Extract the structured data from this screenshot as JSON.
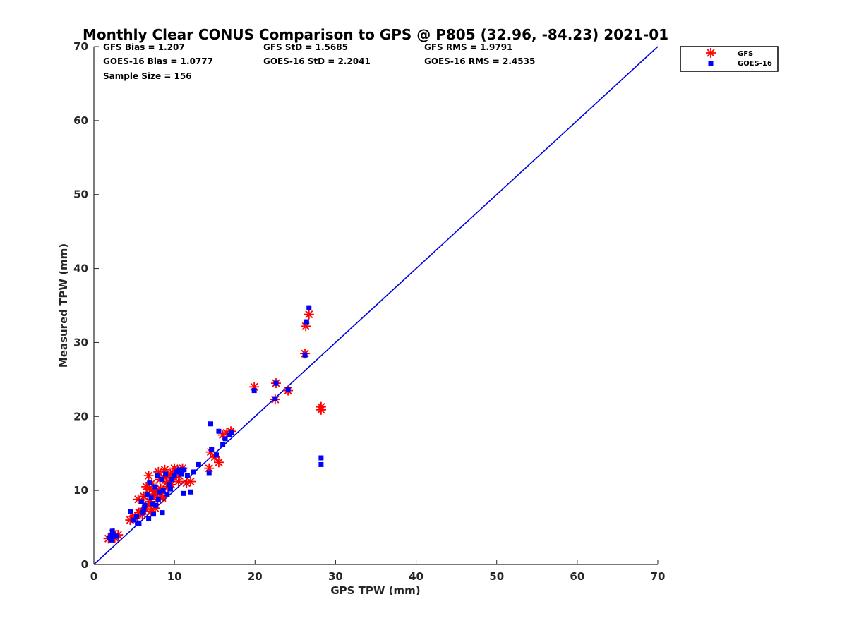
{
  "chart_data": {
    "type": "scatter",
    "title": "Monthly Clear CONUS Comparison to GPS @ P805 (32.96, -84.23) 2021-01",
    "xlabel": "GPS TPW (mm)",
    "ylabel": "Measured TPW (mm)",
    "xlim": [
      0,
      70
    ],
    "ylim": [
      0,
      70
    ],
    "xticks": [
      "0",
      "10",
      "20",
      "30",
      "40",
      "50",
      "60",
      "70"
    ],
    "yticks": [
      "0",
      "10",
      "20",
      "30",
      "40",
      "50",
      "60",
      "70"
    ],
    "grid": false,
    "legend_position": "top-right-outside",
    "stats": [
      [
        "GFS Bias = 1.207",
        "GFS StD = 1.5685",
        "GFS RMS = 1.9791"
      ],
      [
        "GOES-16 Bias = 1.0777",
        "GOES-16 StD = 2.2041",
        "GOES-16 RMS = 2.4535"
      ],
      [
        "Sample Size = 156"
      ]
    ],
    "reference_line": {
      "x": [
        0,
        70
      ],
      "y": [
        0,
        70
      ],
      "color": "#0000dd"
    },
    "series": [
      {
        "name": "GFS",
        "marker": "asterisk",
        "color": "#ff0000",
        "x": [
          1.8,
          2.2,
          2.6,
          3.0,
          2.4,
          4.5,
          4.8,
          5.2,
          5.5,
          5.8,
          6.0,
          6.2,
          6.5,
          6.8,
          7.0,
          7.2,
          7.5,
          7.8,
          8.0,
          8.2,
          8.5,
          8.8,
          9.0,
          9.2,
          9.5,
          9.8,
          10.0,
          10.2,
          10.5,
          10.8,
          11.0,
          11.5,
          12.0,
          6.4,
          6.7,
          7.1,
          7.4,
          7.9,
          8.3,
          8.7,
          9.1,
          9.6,
          10.1,
          5.6,
          6.9,
          7.6,
          8.4,
          9.3,
          10.6,
          14.3,
          14.5,
          15.0,
          15.5,
          16.0,
          16.5,
          17.0,
          19.9,
          22.6,
          22.5,
          24.1,
          26.2,
          26.3,
          26.7,
          28.2,
          28.2
        ],
        "y": [
          3.5,
          3.8,
          3.6,
          4.0,
          4.2,
          6.0,
          6.5,
          6.2,
          8.8,
          7.0,
          6.8,
          9.2,
          10.5,
          12.0,
          8.5,
          11.0,
          9.5,
          10.0,
          12.5,
          11.5,
          9.0,
          12.8,
          11.0,
          10.5,
          12.2,
          11.8,
          13.0,
          12.5,
          11.2,
          12.8,
          13.0,
          11.0,
          11.2,
          7.5,
          8.0,
          7.2,
          9.8,
          8.8,
          10.2,
          11.8,
          12.0,
          10.8,
          12.6,
          7.0,
          10.2,
          7.6,
          9.6,
          11.2,
          12.0,
          13.0,
          15.2,
          14.5,
          13.8,
          17.5,
          17.8,
          18.0,
          24.0,
          24.5,
          22.3,
          23.5,
          28.5,
          32.2,
          33.8,
          21.3,
          20.9
        ]
      },
      {
        "name": "GOES-16",
        "marker": "square",
        "color": "#0000ff",
        "x": [
          1.9,
          2.1,
          2.3,
          2.5,
          2.8,
          2.2,
          4.6,
          4.9,
          5.3,
          5.6,
          5.9,
          6.1,
          6.3,
          6.6,
          6.9,
          7.1,
          7.3,
          7.6,
          7.9,
          8.1,
          8.4,
          8.6,
          8.9,
          9.1,
          9.4,
          9.7,
          10.0,
          10.3,
          10.6,
          10.9,
          11.2,
          11.6,
          12.0,
          12.4,
          13.0,
          11.1,
          8.5,
          6.8,
          7.7,
          9.5,
          5.4,
          6.2,
          7.4,
          8.0,
          14.5,
          14.3,
          14.6,
          15.2,
          15.5,
          16.0,
          16.3,
          16.8,
          17.1,
          19.9,
          22.6,
          22.5,
          24.1,
          26.2,
          26.4,
          26.7,
          28.2,
          28.2
        ],
        "y": [
          3.6,
          3.9,
          4.5,
          4.0,
          3.8,
          3.3,
          7.2,
          6.0,
          6.5,
          5.5,
          8.5,
          7.0,
          8.0,
          9.5,
          11.0,
          9.0,
          8.2,
          10.5,
          12.0,
          9.8,
          11.5,
          10.0,
          12.2,
          9.5,
          10.8,
          11.5,
          12.0,
          12.5,
          12.8,
          12.2,
          12.8,
          12.0,
          9.8,
          12.5,
          13.5,
          9.6,
          7.0,
          6.2,
          8.0,
          10.2,
          5.6,
          7.5,
          6.8,
          8.8,
          19.0,
          12.4,
          15.5,
          14.8,
          18.0,
          16.2,
          17.0,
          17.5,
          17.8,
          23.5,
          24.5,
          22.4,
          23.6,
          28.3,
          32.8,
          34.7,
          14.4,
          13.5
        ]
      }
    ]
  }
}
